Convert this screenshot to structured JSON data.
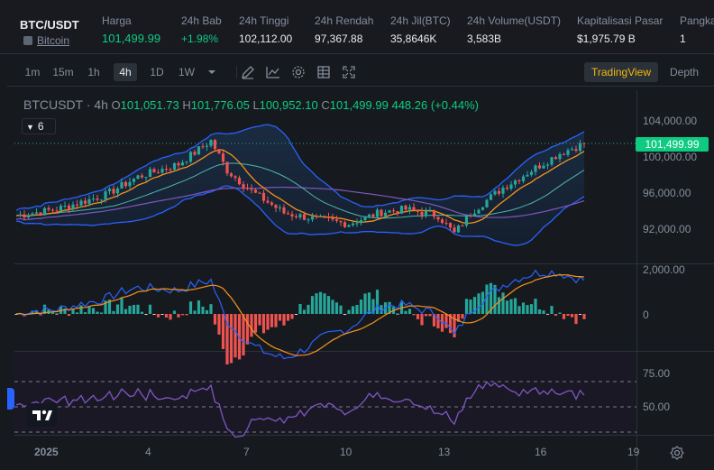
{
  "header": {
    "pair": "BTC/USDT",
    "pair_sub": "Bitcoin",
    "stats": [
      {
        "label": "Harga",
        "value": "101,499.99",
        "color": "green"
      },
      {
        "label": "24h Bab",
        "value": "+1.98%",
        "color": "green"
      },
      {
        "label": "24h Tinggi",
        "value": "102,112.00"
      },
      {
        "label": "24h Rendah",
        "value": "97,367.88"
      },
      {
        "label": "24h Jil(BTC)",
        "value": "35,8646K"
      },
      {
        "label": "24h Volume(USDT)",
        "value": "3,583B"
      },
      {
        "label": "Kapitalisasi Pasar",
        "value": "$1,975.79 B"
      },
      {
        "label": "Pangka",
        "value": "1"
      }
    ]
  },
  "toolbar": {
    "timeframes": [
      "1m",
      "15m",
      "1h",
      "4h",
      "1D",
      "1W"
    ],
    "active_timeframe": "4h",
    "tradingview_label": "TradingView",
    "depth_label": "Depth",
    "icons": [
      "pencil-icon",
      "line-chart-icon",
      "gear-icon",
      "table-icon",
      "expand-icon"
    ]
  },
  "chart": {
    "symbol": "BTCUSDT",
    "interval": "4h",
    "open_label": "O",
    "open": "101,051.73",
    "high_label": "H",
    "high": "101,776.05",
    "low_label": "L",
    "low": "100,952.10",
    "close_label": "C",
    "close": "101,499.99",
    "change": "448.26 (+0.44%)",
    "indicator_count": "6",
    "last_price": "101,499.99",
    "price_axis": [
      "104,000.00",
      "100,000.00",
      "96,000.00",
      "92,000.00"
    ],
    "macd_axis": [
      "2,000.00",
      "0"
    ],
    "rsi_axis": [
      "75.00",
      "50.00"
    ],
    "time_axis": [
      "2025",
      "4",
      "7",
      "10",
      "13",
      "16",
      "19"
    ],
    "colors": {
      "up": "#26a69a",
      "down": "#ef5350",
      "bb": "#2962ff",
      "ma_fast": "#f7931a",
      "ma_mid": "#7e57c2",
      "ma_slow": "#4db6ac",
      "rsi": "#7e57c2"
    }
  }
}
